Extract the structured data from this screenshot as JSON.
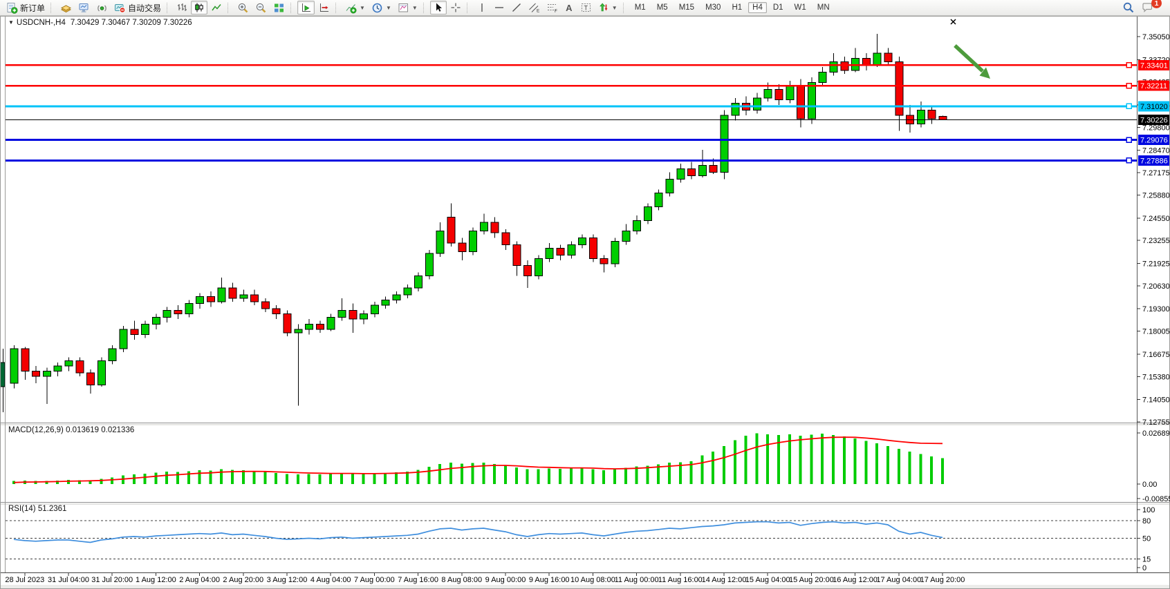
{
  "toolbar": {
    "new_order": "新订单",
    "auto_trading": "自动交易",
    "timeframes": [
      "M1",
      "M5",
      "M15",
      "M30",
      "H1",
      "H4",
      "D1",
      "W1",
      "MN"
    ],
    "active_timeframe": "H4",
    "notification_badge": "1"
  },
  "window": {
    "title_symbol": "USDCNH-,H4",
    "title_ohlc": "7.30429 7.30467 7.30209 7.30226"
  },
  "colors": {
    "up": "#00CE00",
    "down": "#F40000",
    "wick": "#000000",
    "resistance": "#FE0000",
    "pivot": "#00C3F8",
    "support": "#0009E0",
    "current": "#000000",
    "macd_bar": "#00CC00",
    "macd_signal": "#FF0000",
    "rsi_line": "#3E8EDE",
    "arrow": "#4D9B3C"
  },
  "price_axis": {
    "ticks": [
      "7.35050",
      "7.33720",
      "7.32425",
      "7.31095",
      "7.29800",
      "7.28470",
      "7.27175",
      "7.25880",
      "7.24550",
      "7.23255",
      "7.21925",
      "7.20630",
      "7.19300",
      "7.18005",
      "7.16675",
      "7.15380",
      "7.14050",
      "7.12755"
    ]
  },
  "hlines": [
    {
      "price": 7.33401,
      "label": "7.33401",
      "color": "#FE0000",
      "width": 2.5,
      "text": "#ffffff",
      "handle": true
    },
    {
      "price": 7.32211,
      "label": "7.32211",
      "color": "#FE0000",
      "width": 2.5,
      "text": "#ffffff",
      "handle": true
    },
    {
      "price": 7.3102,
      "label": "7.31020",
      "color": "#00C3F8",
      "width": 3,
      "text": "#000000",
      "handle": true
    },
    {
      "price": 7.30226,
      "label": "7.30226",
      "color": "#000000",
      "width": 1,
      "text": "#ffffff",
      "handle": false
    },
    {
      "price": 7.29076,
      "label": "7.29076",
      "color": "#0009E0",
      "width": 3,
      "text": "#ffffff",
      "handle": true
    },
    {
      "price": 7.27886,
      "label": "7.27886",
      "color": "#0009E0",
      "width": 3,
      "text": "#ffffff",
      "handle": true
    }
  ],
  "time_axis": {
    "labels": [
      "28 Jul 2023",
      "31 Jul 04:00",
      "31 Jul 20:00",
      "1 Aug 12:00",
      "2 Aug 04:00",
      "2 Aug 20:00",
      "3 Aug 12:00",
      "4 Aug 04:00",
      "7 Aug 00:00",
      "7 Aug 16:00",
      "8 Aug 08:00",
      "9 Aug 00:00",
      "9 Aug 16:00",
      "10 Aug 08:00",
      "11 Aug 00:00",
      "11 Aug 16:00",
      "14 Aug 12:00",
      "15 Aug 04:00",
      "15 Aug 20:00",
      "16 Aug 12:00",
      "17 Aug 04:00",
      "17 Aug 20:00"
    ],
    "indices": [
      1,
      5,
      9,
      13,
      17,
      21,
      25,
      29,
      33,
      37,
      41,
      45,
      49,
      53,
      57,
      61,
      65,
      69,
      73,
      77,
      81,
      85
    ]
  },
  "chart_data": {
    "type": "candlestick",
    "symbol": "USDCNH-",
    "period": "H4",
    "ylim": [
      7.12755,
      7.3505
    ],
    "candles": [
      [
        7.15,
        7.172,
        7.147,
        7.17
      ],
      [
        7.17,
        7.171,
        7.152,
        7.157
      ],
      [
        7.157,
        7.16,
        7.15,
        7.154
      ],
      [
        7.154,
        7.159,
        7.138,
        7.157
      ],
      [
        7.157,
        7.162,
        7.154,
        7.16
      ],
      [
        7.16,
        7.165,
        7.157,
        7.163
      ],
      [
        7.163,
        7.165,
        7.154,
        7.156
      ],
      [
        7.156,
        7.158,
        7.144,
        7.149
      ],
      [
        7.149,
        7.165,
        7.148,
        7.163
      ],
      [
        7.163,
        7.172,
        7.161,
        7.17
      ],
      [
        7.17,
        7.183,
        7.168,
        7.181
      ],
      [
        7.181,
        7.186,
        7.175,
        7.178
      ],
      [
        7.178,
        7.186,
        7.176,
        7.184
      ],
      [
        7.184,
        7.19,
        7.181,
        7.188
      ],
      [
        7.188,
        7.194,
        7.185,
        7.192
      ],
      [
        7.192,
        7.195,
        7.187,
        7.19
      ],
      [
        7.19,
        7.198,
        7.188,
        7.196
      ],
      [
        7.196,
        7.202,
        7.193,
        7.2
      ],
      [
        7.2,
        7.203,
        7.194,
        7.197
      ],
      [
        7.197,
        7.211,
        7.196,
        7.205
      ],
      [
        7.205,
        7.208,
        7.197,
        7.199
      ],
      [
        7.199,
        7.204,
        7.197,
        7.201
      ],
      [
        7.201,
        7.204,
        7.195,
        7.197
      ],
      [
        7.197,
        7.199,
        7.191,
        7.193
      ],
      [
        7.193,
        7.195,
        7.187,
        7.19
      ],
      [
        7.19,
        7.192,
        7.177,
        7.179
      ],
      [
        7.179,
        7.184,
        7.137,
        7.181
      ],
      [
        7.181,
        7.187,
        7.178,
        7.184
      ],
      [
        7.184,
        7.186,
        7.179,
        7.181
      ],
      [
        7.181,
        7.19,
        7.18,
        7.188
      ],
      [
        7.188,
        7.199,
        7.186,
        7.192
      ],
      [
        7.192,
        7.196,
        7.179,
        7.187
      ],
      [
        7.187,
        7.192,
        7.184,
        7.19
      ],
      [
        7.19,
        7.197,
        7.188,
        7.195
      ],
      [
        7.195,
        7.2,
        7.193,
        7.198
      ],
      [
        7.198,
        7.203,
        7.196,
        7.201
      ],
      [
        7.201,
        7.207,
        7.199,
        7.205
      ],
      [
        7.205,
        7.214,
        7.203,
        7.212
      ],
      [
        7.212,
        7.227,
        7.21,
        7.225
      ],
      [
        7.225,
        7.243,
        7.223,
        7.238
      ],
      [
        7.246,
        7.254,
        7.229,
        7.231
      ],
      [
        7.231,
        7.234,
        7.221,
        7.226
      ],
      [
        7.226,
        7.24,
        7.224,
        7.238
      ],
      [
        7.238,
        7.248,
        7.236,
        7.243
      ],
      [
        7.243,
        7.246,
        7.234,
        7.237
      ],
      [
        7.237,
        7.239,
        7.227,
        7.23
      ],
      [
        7.23,
        7.232,
        7.212,
        7.218
      ],
      [
        7.218,
        7.221,
        7.205,
        7.212
      ],
      [
        7.212,
        7.224,
        7.21,
        7.222
      ],
      [
        7.222,
        7.231,
        7.22,
        7.228
      ],
      [
        7.228,
        7.23,
        7.221,
        7.224
      ],
      [
        7.224,
        7.232,
        7.222,
        7.23
      ],
      [
        7.23,
        7.236,
        7.228,
        7.234
      ],
      [
        7.234,
        7.236,
        7.22,
        7.222
      ],
      [
        7.222,
        7.224,
        7.214,
        7.219
      ],
      [
        7.219,
        7.234,
        7.217,
        7.232
      ],
      [
        7.232,
        7.242,
        7.23,
        7.238
      ],
      [
        7.238,
        7.247,
        7.236,
        7.244
      ],
      [
        7.244,
        7.254,
        7.242,
        7.252
      ],
      [
        7.252,
        7.262,
        7.25,
        7.26
      ],
      [
        7.26,
        7.272,
        7.258,
        7.268
      ],
      [
        7.268,
        7.277,
        7.266,
        7.274
      ],
      [
        7.274,
        7.278,
        7.268,
        7.27
      ],
      [
        7.27,
        7.285,
        7.269,
        7.276
      ],
      [
        7.276,
        7.28,
        7.271,
        7.272
      ],
      [
        7.272,
        7.308,
        7.268,
        7.305
      ],
      [
        7.305,
        7.315,
        7.302,
        7.312
      ],
      [
        7.312,
        7.316,
        7.305,
        7.308
      ],
      [
        7.308,
        7.318,
        7.306,
        7.315
      ],
      [
        7.315,
        7.324,
        7.313,
        7.32
      ],
      [
        7.32,
        7.323,
        7.311,
        7.314
      ],
      [
        7.314,
        7.325,
        7.312,
        7.322
      ],
      [
        7.322,
        7.326,
        7.298,
        7.303
      ],
      [
        7.303,
        7.327,
        7.3,
        7.324
      ],
      [
        7.324,
        7.333,
        7.322,
        7.33
      ],
      [
        7.33,
        7.341,
        7.328,
        7.336
      ],
      [
        7.336,
        7.339,
        7.329,
        7.331
      ],
      [
        7.331,
        7.344,
        7.33,
        7.338
      ],
      [
        7.338,
        7.341,
        7.331,
        7.334
      ],
      [
        7.334,
        7.352,
        7.333,
        7.341
      ],
      [
        7.341,
        7.344,
        7.334,
        7.336
      ],
      [
        7.336,
        7.339,
        7.296,
        7.305
      ],
      [
        7.305,
        7.311,
        7.295,
        7.3
      ],
      [
        7.3,
        7.313,
        7.298,
        7.308
      ],
      [
        7.308,
        7.31,
        7.3,
        7.303
      ],
      [
        7.30429,
        7.30467,
        7.30209,
        7.30226
      ]
    ],
    "macd": {
      "label": "MACD(12,26,9)",
      "value": "0.013619",
      "signal_value": "0.021336",
      "axis": [
        "0.026892",
        "0.00",
        "-0.008557"
      ],
      "hist": [
        0.0016,
        0.0018,
        0.0016,
        0.0017,
        0.0019,
        0.0022,
        0.002,
        0.0018,
        0.0028,
        0.0035,
        0.0045,
        0.005,
        0.0055,
        0.006,
        0.0065,
        0.0063,
        0.0068,
        0.0072,
        0.007,
        0.0078,
        0.0074,
        0.0072,
        0.0068,
        0.0064,
        0.0058,
        0.0052,
        0.005,
        0.0052,
        0.005,
        0.0054,
        0.0058,
        0.0054,
        0.0052,
        0.0055,
        0.0058,
        0.0062,
        0.0066,
        0.0075,
        0.009,
        0.0105,
        0.0112,
        0.0108,
        0.011,
        0.0112,
        0.0106,
        0.0098,
        0.0088,
        0.0078,
        0.0078,
        0.0082,
        0.008,
        0.0082,
        0.0084,
        0.0078,
        0.0072,
        0.0078,
        0.0085,
        0.0092,
        0.0096,
        0.0104,
        0.0112,
        0.0114,
        0.012,
        0.015,
        0.017,
        0.02,
        0.023,
        0.0255,
        0.0268,
        0.0262,
        0.0258,
        0.0262,
        0.0255,
        0.026,
        0.0265,
        0.0258,
        0.025,
        0.024,
        0.0228,
        0.0215,
        0.02,
        0.0185,
        0.017,
        0.0158,
        0.0146,
        0.013619
      ],
      "signal": [
        0.0008,
        0.001,
        0.0011,
        0.0012,
        0.0013,
        0.0015,
        0.0016,
        0.0017,
        0.0019,
        0.0022,
        0.0026,
        0.0031,
        0.0036,
        0.0041,
        0.0046,
        0.0049,
        0.0053,
        0.0057,
        0.0059,
        0.0063,
        0.0065,
        0.0066,
        0.0067,
        0.0066,
        0.0064,
        0.0062,
        0.006,
        0.0058,
        0.0057,
        0.0056,
        0.0056,
        0.0056,
        0.0055,
        0.0055,
        0.0056,
        0.0057,
        0.0059,
        0.0062,
        0.0068,
        0.0075,
        0.0082,
        0.0087,
        0.0092,
        0.0096,
        0.0098,
        0.0098,
        0.0096,
        0.0092,
        0.0089,
        0.0088,
        0.0086,
        0.0085,
        0.0085,
        0.0084,
        0.0081,
        0.008,
        0.0081,
        0.0083,
        0.0086,
        0.009,
        0.0094,
        0.0098,
        0.0102,
        0.0112,
        0.0124,
        0.0139,
        0.0157,
        0.0177,
        0.0195,
        0.0208,
        0.0218,
        0.0227,
        0.0233,
        0.0238,
        0.0243,
        0.0246,
        0.0247,
        0.0246,
        0.0242,
        0.0237,
        0.023,
        0.0224,
        0.0219,
        0.0215,
        0.0214,
        0.021336
      ]
    },
    "rsi": {
      "label": "RSI(14)",
      "value": "51.2361",
      "levels": [
        80,
        50,
        15
      ],
      "axis": [
        "100",
        "80",
        "50",
        "15",
        "0"
      ],
      "values": [
        48,
        46,
        45,
        46,
        47,
        47,
        45,
        43,
        47,
        49,
        52,
        53,
        52,
        54,
        55,
        56,
        57,
        58,
        57,
        59,
        56,
        57,
        55,
        53,
        50,
        48,
        49,
        50,
        49,
        51,
        52,
        50,
        51,
        52,
        53,
        54,
        55,
        57,
        62,
        66,
        67,
        64,
        66,
        67,
        64,
        61,
        56,
        53,
        56,
        58,
        57,
        58,
        59,
        56,
        54,
        57,
        60,
        62,
        63,
        65,
        67,
        66,
        68,
        70,
        71,
        73,
        76,
        77,
        78,
        78,
        76,
        77,
        72,
        75,
        77,
        78,
        76,
        77,
        74,
        76,
        73,
        62,
        57,
        60,
        55,
        51.2361
      ]
    }
  }
}
